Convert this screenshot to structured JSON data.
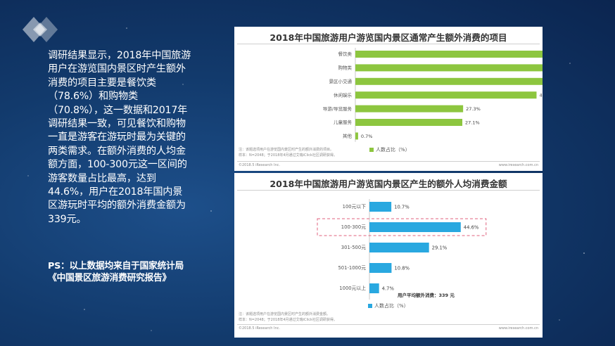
{
  "left": {
    "text": "调研结果显示，2018年中国旅游用户在游览国内景区时产生额外消费的项目主要是餐饮类（78.6%）和购物类（70.8%），这一数据和2017年调研结果一致，可见餐饮和购物一直是游客在游玩时最为关键的两类需求。在额外消费的人均金额方面，100-300元这一区间的游客数量占比最高，达到44.6%，用户在2018年国内景区游玩时平均的额外消费金额为339元。",
    "note": "PS：以上数据均来自于国家统计局《中国景区旅游消费研究报告》"
  },
  "colors": {
    "bar_green": "#8dc63f",
    "bar_blue": "#29a8e0",
    "highlight": "#e0607e"
  },
  "chart_data": [
    {
      "type": "bar",
      "orientation": "horizontal",
      "title": "2018年中国旅游用户游览国内景区通常产生额外消费的项目",
      "categories": [
        "餐饮类",
        "购物类",
        "景区小交通",
        "休闲娱乐",
        "导游/导览服务",
        "儿童服务",
        "其他"
      ],
      "values": [
        78.6,
        70.8,
        58.7,
        45.9,
        27.3,
        27.1,
        0.7
      ],
      "value_labels": [
        "78.6%",
        "70.8%",
        "58.7%",
        "45.9%",
        "27.3%",
        "27.1%",
        "0.7%"
      ],
      "xlim": [
        0,
        100
      ],
      "legend": {
        "label": "人数占比（%）",
        "position": "bottom"
      },
      "color": "#8dc63f",
      "footnote": "注：该题选项用户在游览国内景区时产生的额外消费的项目。",
      "sample": "样本：N=2048；于2018年4月通过艾瑞iClick社区调研获得。",
      "source": "©2018.5 iResearch Inc.",
      "source_right": "www.iresearch.com.cn"
    },
    {
      "type": "bar",
      "orientation": "horizontal",
      "title": "2018年中国旅游用户游览国内景区产生的额外人均消费金额",
      "categories": [
        "100元以下",
        "100-300元",
        "301-500元",
        "501-1000元",
        "1000元以上"
      ],
      "values": [
        10.7,
        44.6,
        29.1,
        10.8,
        4.7
      ],
      "value_labels": [
        "10.7%",
        "44.6%",
        "29.1%",
        "10.8%",
        "4.7%"
      ],
      "xlim": [
        0,
        100
      ],
      "highlight_category": "100-300元",
      "avg_note": "用户平均额外消费：339 元",
      "legend": {
        "label": "人数占比（%）",
        "position": "bottom-left"
      },
      "color": "#29a8e0",
      "footnote": "注：该题选项用户在游览国内景区时产生的额外消费金额。",
      "sample": "样本：N=2048；于2018年4月通过艾瑞iClick社区调研获得。",
      "source": "©2018.5 iResearch Inc.",
      "source_right": "www.iresearch.com.cn"
    }
  ]
}
